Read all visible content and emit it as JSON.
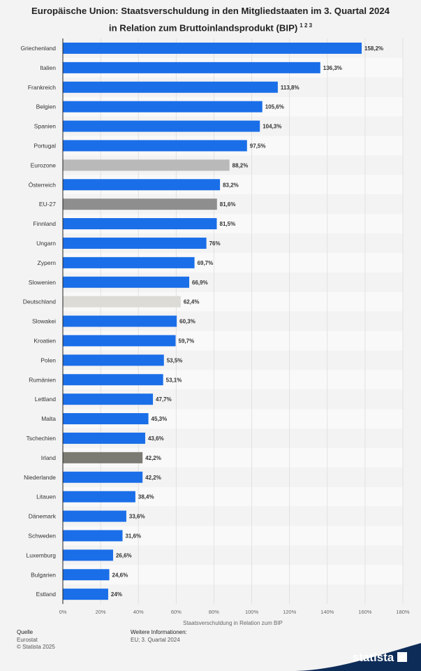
{
  "title": {
    "line1": "Europäische Union: Staatsverschuldung in den Mitgliedstaaten im 3. Quartal 2024",
    "line2": "in Relation zum Bruttoinlandsprodukt (BIP)",
    "footnotes": "1 2 3"
  },
  "chart_data": {
    "type": "bar",
    "orientation": "horizontal",
    "xlabel": "Staatsverschuldung in Relation zum BIP",
    "xlim": [
      0,
      180
    ],
    "x_ticks": [
      0,
      20,
      40,
      60,
      80,
      100,
      120,
      140,
      160,
      180
    ],
    "x_tick_labels": [
      "0%",
      "20%",
      "40%",
      "60%",
      "80%",
      "100%",
      "120%",
      "140%",
      "160%",
      "180%"
    ],
    "grid": true,
    "categories": [
      "Griechenland",
      "Italien",
      "Frankreich",
      "Belgien",
      "Spanien",
      "Portugal",
      "Eurozone",
      "Österreich",
      "EU-27",
      "Finnland",
      "Ungarn",
      "Zypern",
      "Slowenien",
      "Deutschland",
      "Slowakei",
      "Kroatien",
      "Polen",
      "Rumänien",
      "Lettland",
      "Malta",
      "Tschechien",
      "Irland",
      "Niederlande",
      "Litauen",
      "Dänemark",
      "Schweden",
      "Luxemburg",
      "Bulgarien",
      "Estland"
    ],
    "values": [
      158.2,
      136.3,
      113.8,
      105.6,
      104.3,
      97.5,
      88.2,
      83.2,
      81.6,
      81.5,
      76,
      69.7,
      66.9,
      62.4,
      60.3,
      59.7,
      53.5,
      53.1,
      47.7,
      45.3,
      43.6,
      42.2,
      42.2,
      38.4,
      33.6,
      31.6,
      26.6,
      24.6,
      24
    ],
    "value_labels": [
      "158,2%",
      "136,3%",
      "113,8%",
      "105,6%",
      "104,3%",
      "97,5%",
      "88,2%",
      "83,2%",
      "81,6%",
      "81,5%",
      "76%",
      "69,7%",
      "66,9%",
      "62,4%",
      "60,3%",
      "59,7%",
      "53,5%",
      "53,1%",
      "47,7%",
      "45,3%",
      "43,6%",
      "42,2%",
      "42,2%",
      "38,4%",
      "33,6%",
      "31,6%",
      "26,6%",
      "24,6%",
      "24%"
    ],
    "colors": [
      "#1a6ee8",
      "#1a6ee8",
      "#1a6ee8",
      "#1a6ee8",
      "#1a6ee8",
      "#1a6ee8",
      "#b9b9b9",
      "#1a6ee8",
      "#8e8e8e",
      "#1a6ee8",
      "#1a6ee8",
      "#1a6ee8",
      "#1a6ee8",
      "#dcdbd6",
      "#1a6ee8",
      "#1a6ee8",
      "#1a6ee8",
      "#1a6ee8",
      "#1a6ee8",
      "#1a6ee8",
      "#1a6ee8",
      "#7c7b73",
      "#1a6ee8",
      "#1a6ee8",
      "#1a6ee8",
      "#1a6ee8",
      "#1a6ee8",
      "#1a6ee8",
      "#1a6ee8"
    ]
  },
  "footer": {
    "source_label": "Quelle",
    "source_value": "Eurostat",
    "copyright": "© Statista 2025",
    "info_label": "Weitere Informationen:",
    "info_value": "EU; 3. Quartal 2024",
    "brand": "statista"
  },
  "colors": {
    "brand_band": "#0e2c58",
    "background": "#f3f3f3",
    "row_stripe": "#f9f9f9"
  }
}
